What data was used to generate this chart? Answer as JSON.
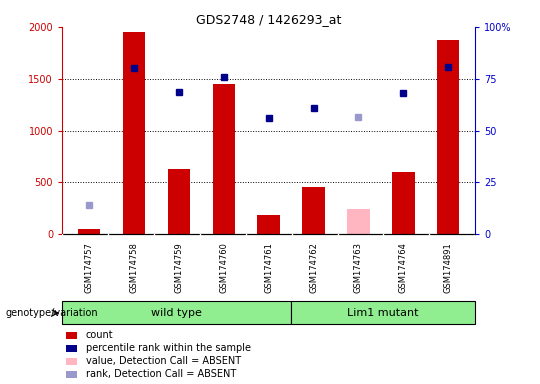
{
  "title": "GDS2748 / 1426293_at",
  "samples": [
    "GSM174757",
    "GSM174758",
    "GSM174759",
    "GSM174760",
    "GSM174761",
    "GSM174762",
    "GSM174763",
    "GSM174764",
    "GSM174891"
  ],
  "bar_values": [
    50,
    1950,
    630,
    1450,
    190,
    460,
    0,
    600,
    1870
  ],
  "bar_color": "#cc0000",
  "absent_bar_values": [
    0,
    0,
    0,
    0,
    0,
    0,
    240,
    0,
    0
  ],
  "absent_bar_color": "#ffb6c1",
  "rank_values": [
    null,
    1600,
    1370,
    1520,
    1120,
    1220,
    null,
    1360,
    1610
  ],
  "rank_absent_values": [
    280,
    null,
    null,
    null,
    null,
    null,
    1130,
    null,
    null
  ],
  "rank_color": "#00008b",
  "rank_absent_color": "#9999cc",
  "ylim": [
    0,
    2000
  ],
  "yticks": [
    0,
    500,
    1000,
    1500,
    2000
  ],
  "ytick_labels_left": [
    "0",
    "500",
    "1000",
    "1500",
    "2000"
  ],
  "ytick_labels_right": [
    "0",
    "25",
    "50",
    "75",
    "100%"
  ],
  "ylabel_left_color": "#cc0000",
  "ylabel_right_color": "#0000cc",
  "wild_type_label": "wild type",
  "mutant_label": "Lim1 mutant",
  "genotype_label": "genotype/variation",
  "legend_items": [
    {
      "label": "count",
      "color": "#cc0000"
    },
    {
      "label": "percentile rank within the sample",
      "color": "#00008b"
    },
    {
      "label": "value, Detection Call = ABSENT",
      "color": "#ffb6c1"
    },
    {
      "label": "rank, Detection Call = ABSENT",
      "color": "#9999cc"
    }
  ],
  "background_color": "#ffffff",
  "bar_width": 0.5,
  "cell_bg": "#d3d3d3",
  "green_color": "#90ee90"
}
